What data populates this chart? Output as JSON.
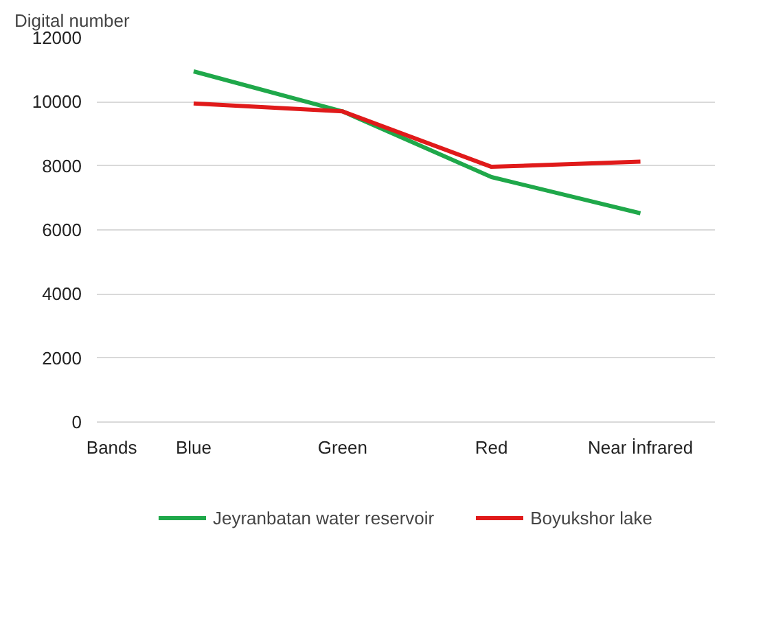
{
  "chart_data": {
    "type": "line",
    "ylabel": "Digital number",
    "xlabel": "Bands",
    "categories": [
      "Blue",
      "Green",
      "Red",
      "Near İnfrared"
    ],
    "series": [
      {
        "name": "Jeyranbatan water reservoir",
        "color": "#1fa84a",
        "values": [
          10950,
          9700,
          7650,
          6520
        ]
      },
      {
        "name": "Boyukshor lake",
        "color": "#e01a1a",
        "values": [
          9950,
          9700,
          7970,
          8130
        ]
      }
    ],
    "ylim": [
      0,
      12000
    ],
    "yticks": [
      0,
      2000,
      4000,
      6000,
      8000,
      10000,
      12000
    ],
    "grid": "y",
    "legend": "bottom",
    "marker": "none",
    "line_style": "solid"
  }
}
